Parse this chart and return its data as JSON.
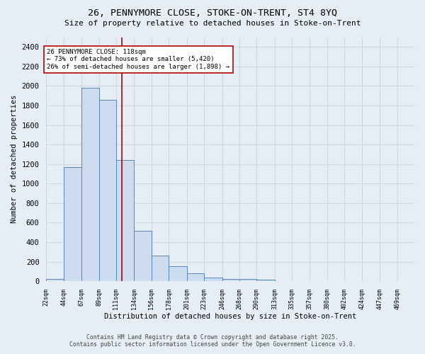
{
  "title_line1": "26, PENNYMORE CLOSE, STOKE-ON-TRENT, ST4 8YQ",
  "title_line2": "Size of property relative to detached houses in Stoke-on-Trent",
  "xlabel": "Distribution of detached houses by size in Stoke-on-Trent",
  "ylabel": "Number of detached properties",
  "bin_labels": [
    "22sqm",
    "44sqm",
    "67sqm",
    "89sqm",
    "111sqm",
    "134sqm",
    "156sqm",
    "178sqm",
    "201sqm",
    "223sqm",
    "246sqm",
    "268sqm",
    "290sqm",
    "313sqm",
    "335sqm",
    "357sqm",
    "380sqm",
    "402sqm",
    "424sqm",
    "447sqm",
    "469sqm"
  ],
  "bin_edges": [
    22,
    44,
    67,
    89,
    111,
    134,
    156,
    178,
    201,
    223,
    246,
    268,
    290,
    313,
    335,
    357,
    380,
    402,
    424,
    447,
    469
  ],
  "bar_heights": [
    20,
    1170,
    1980,
    1860,
    1240,
    520,
    265,
    155,
    85,
    35,
    25,
    20,
    15,
    5,
    5,
    3,
    3,
    2,
    2,
    2,
    0
  ],
  "bar_color": "#ccdcee",
  "bar_edge_color": "#5588bb",
  "vline_x": 118,
  "vline_color": "#bb0000",
  "annotation_text": "26 PENNYMORE CLOSE: 118sqm\n← 73% of detached houses are smaller (5,420)\n26% of semi-detached houses are larger (1,898) →",
  "annotation_box_color": "#ffffff",
  "annotation_box_edge": "#bb0000",
  "ylim": [
    0,
    2500
  ],
  "yticks": [
    0,
    200,
    400,
    600,
    800,
    1000,
    1200,
    1400,
    1600,
    1800,
    2000,
    2200,
    2400
  ],
  "bg_color": "#e6edf5",
  "grid_color": "#d0d8e4",
  "footer_line1": "Contains HM Land Registry data © Crown copyright and database right 2025.",
  "footer_line2": "Contains public sector information licensed under the Open Government Licence v3.0."
}
